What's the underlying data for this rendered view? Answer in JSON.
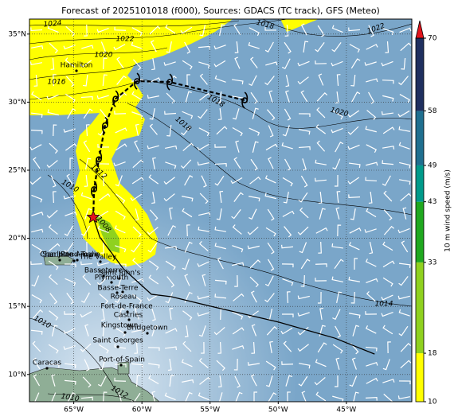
{
  "header": {
    "title": "Forecast of 2025101018 (f000), Sources: GDACS (TC track), GFS (Meteo)"
  },
  "map": {
    "xlim": [
      -68.25,
      -40.2
    ],
    "ylim": [
      8.0,
      36.1
    ],
    "xticks": [
      {
        "value": -65,
        "label": "65°W"
      },
      {
        "value": -60,
        "label": "60°W"
      },
      {
        "value": -55,
        "label": "55°W"
      },
      {
        "value": -50,
        "label": "50°W"
      },
      {
        "value": -45,
        "label": "45°W"
      }
    ],
    "yticks": [
      {
        "value": 10,
        "label": "10°N"
      },
      {
        "value": 15,
        "label": "15°N"
      },
      {
        "value": 20,
        "label": "20°N"
      },
      {
        "value": 25,
        "label": "25°N"
      },
      {
        "value": 30,
        "label": "30°N"
      },
      {
        "value": 35,
        "label": "35°N"
      }
    ],
    "grid": true,
    "isobar_labels": [
      "1024",
      "1022",
      "1020",
      "1016",
      "1018",
      "1022",
      "1018",
      "1018",
      "1020",
      "1012",
      "1010",
      "1008",
      "1014",
      "1010",
      "1010",
      "1012"
    ],
    "places": [
      "Hamilton",
      "Caracas",
      "Port-of-Spain",
      "Saint Georges",
      "Kingstown",
      "Bridgetown",
      "Castries",
      "Fort-de-France",
      "Roseau",
      "Basse-Terre",
      "Plymouth",
      "Saint John's",
      "Basseterre",
      "The Valley",
      "Road Town",
      "Charlotte Amalie",
      "San Juan"
    ],
    "storm": {
      "current": {
        "lon": -63.57,
        "lat": 21.55
      },
      "forecast": {
        "lon": [
          -63.57,
          -63.51,
          -63.16,
          -62.7,
          -61.93,
          -60.36,
          -57.96,
          -52.46
        ],
        "lat": [
          21.55,
          23.6,
          25.8,
          28.3,
          30.25,
          31.54,
          31.48,
          30.14
        ]
      },
      "past": {
        "lon": [
          -42.93,
          -45.85,
          -49.95,
          -54.92,
          -57.84,
          -59.3,
          -61.35,
          -63.1,
          -63.57
        ],
        "lat": [
          11.5,
          12.67,
          13.84,
          15.0,
          15.71,
          15.89,
          17.75,
          20.1,
          21.55
        ]
      }
    }
  },
  "colorbar": {
    "label": "10 m wind speed (m/s)",
    "levels": [
      10,
      18,
      33,
      43,
      49,
      58,
      70
    ],
    "colors": [
      "#ffff00",
      "#8fd11f",
      "#1fa81f",
      "#009a8a",
      "#1f6f8f",
      "#1f2f5f"
    ],
    "extend_color": "#e3141c"
  }
}
